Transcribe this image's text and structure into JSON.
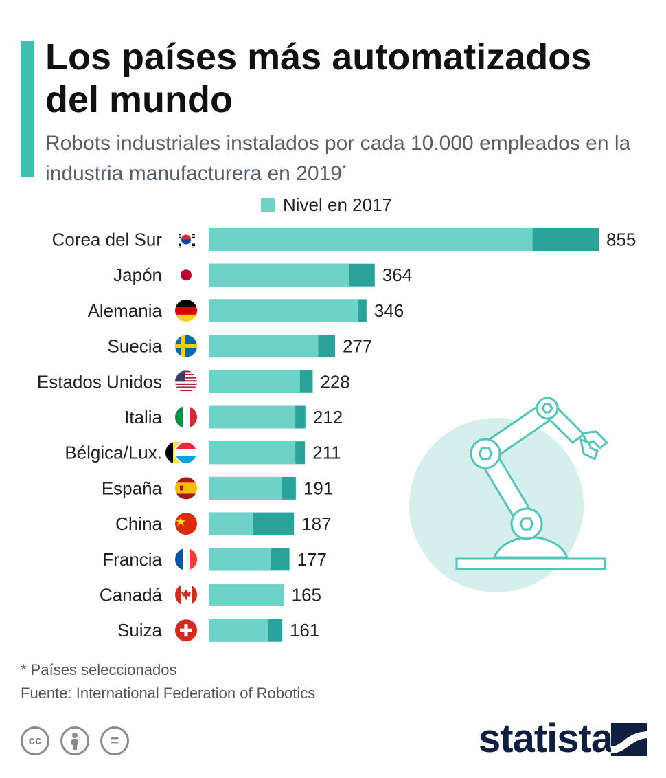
{
  "header": {
    "title": "Los países más automatizados del mundo",
    "subtitle": "Robots industriales instalados por cada 10.000 empleados en la industria manufacturera en 2019",
    "subtitle_mark": "*"
  },
  "legend": {
    "label": "Nivel en 2017"
  },
  "colors": {
    "accent": "#3fbfb0",
    "level_2017": "#6dd3c9",
    "level_2019": "#2aa39a",
    "illustration_circle": "#d5efec",
    "illustration_stroke": "#52c4b8",
    "brand": "#0e1f3f"
  },
  "chart_data": {
    "type": "bar",
    "orientation": "horizontal",
    "categories": [
      "Corea del Sur",
      "Japón",
      "Alemania",
      "Suecia",
      "Estados Unidos",
      "Italia",
      "Bélgica/Lux.",
      "España",
      "China",
      "Francia",
      "Canadá",
      "Suiza"
    ],
    "series": [
      {
        "name": "Nivel en 2017",
        "values": [
          710,
          308,
          328,
          240,
          200,
          190,
          190,
          160,
          97,
          137,
          165,
          130
        ]
      },
      {
        "values": [
          855,
          364,
          346,
          277,
          228,
          212,
          211,
          191,
          187,
          177,
          165,
          161
        ]
      }
    ],
    "value_labels": [
      "855",
      "364",
      "346",
      "277",
      "228",
      "212",
      "211",
      "191",
      "187",
      "177",
      "165",
      "161"
    ],
    "xlim": [
      0,
      855
    ],
    "grid": false,
    "legend_position": "top"
  },
  "flags": [
    "south-korea-flag-icon",
    "japan-flag-icon",
    "germany-flag-icon",
    "sweden-flag-icon",
    "usa-flag-icon",
    "italy-flag-icon",
    "belgium-luxembourg-flag-icon",
    "spain-flag-icon",
    "china-flag-icon",
    "france-flag-icon",
    "canada-flag-icon",
    "switzerland-flag-icon"
  ],
  "footer": {
    "note": "* Países seleccionados",
    "source": "Fuente: International Federation of Robotics",
    "license_icons": [
      "cc-icon",
      "attribution-icon",
      "no-derivatives-icon"
    ],
    "license_cc": "cc",
    "license_nd": "=",
    "brand": "statista"
  }
}
